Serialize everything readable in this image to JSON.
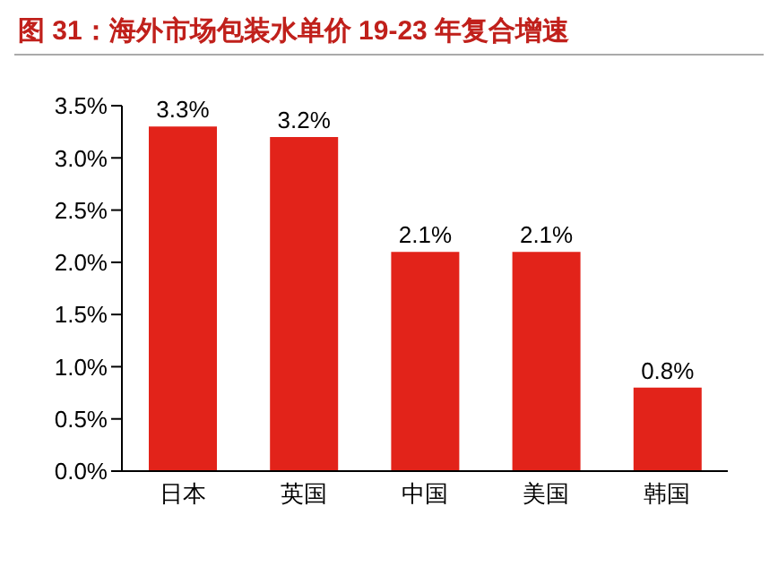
{
  "chart_data": {
    "type": "bar",
    "title": "图 31：海外市场包装水单价 19-23 年复合增速",
    "categories": [
      "日本",
      "英国",
      "中国",
      "美国",
      "韩国"
    ],
    "values": [
      3.3,
      3.2,
      2.1,
      2.1,
      0.8
    ],
    "value_labels": [
      "3.3%",
      "3.2%",
      "2.1%",
      "2.1%",
      "0.8%"
    ],
    "color": "#e2231a",
    "ylim": [
      0,
      3.5
    ],
    "yticks": [
      {
        "value": 0,
        "label": "0.0%"
      },
      {
        "value": 0.5,
        "label": "0.5%"
      },
      {
        "value": 1,
        "label": "1.0%"
      },
      {
        "value": 1.5,
        "label": "1.5%"
      },
      {
        "value": 2,
        "label": "2.0%"
      },
      {
        "value": 2.5,
        "label": "2.5%"
      },
      {
        "value": 3,
        "label": "3.0%"
      },
      {
        "value": 3.5,
        "label": "3.5%"
      }
    ],
    "grid": false
  }
}
